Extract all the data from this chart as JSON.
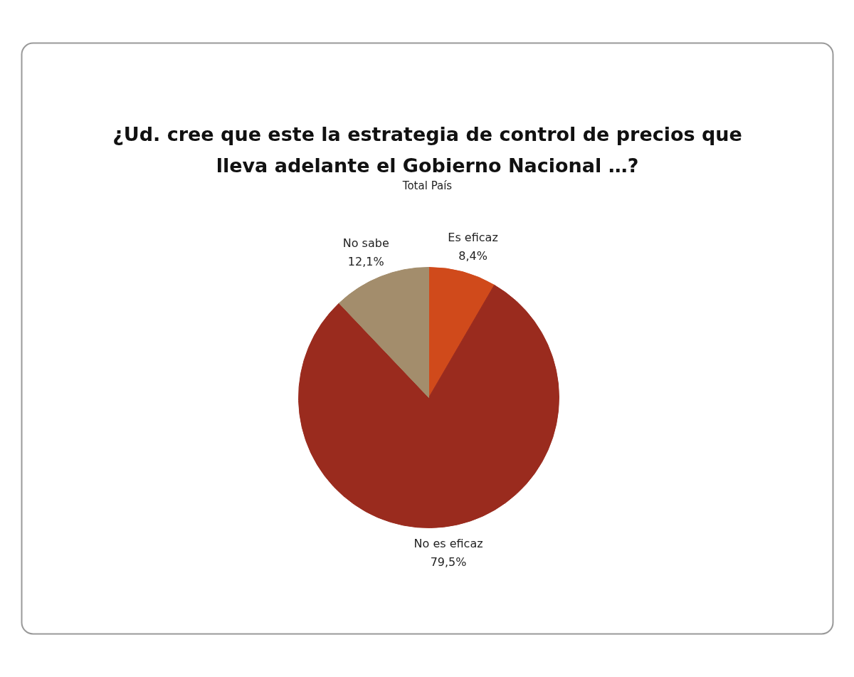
{
  "chart_data": {
    "type": "pie",
    "title": "¿Ud. cree que este la estrategia de control de precios que lleva adelante el Gobierno Nacional …?",
    "subtitle": "Total País",
    "categories": [
      "Es eficaz",
      "No es eficaz",
      "No sabe"
    ],
    "values": [
      8.4,
      79.5,
      12.1
    ],
    "colors": [
      "#d04a1b",
      "#9a2b1e",
      "#a38d6c"
    ],
    "value_labels": [
      "8,4%",
      "79,5%",
      "12,1%"
    ],
    "legend": false
  }
}
